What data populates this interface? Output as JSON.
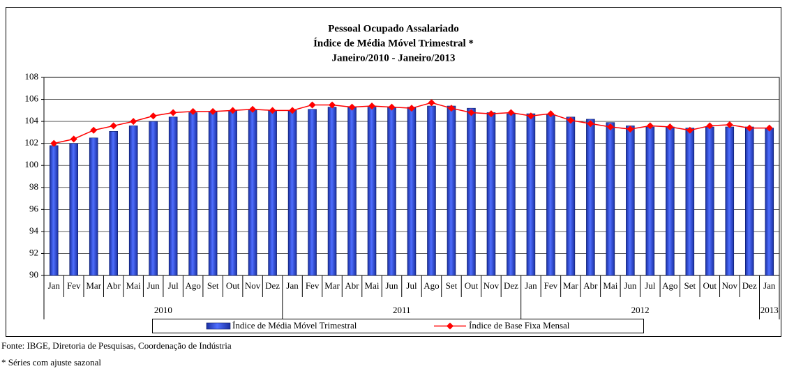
{
  "chart_data": {
    "type": "bar_line",
    "title": [
      "Pessoal Ocupado Assalariado",
      "Índice de Média Móvel Trimestral *",
      "Janeiro/2010 - Janeiro/2013"
    ],
    "categories": [
      "Jan",
      "Fev",
      "Mar",
      "Abr",
      "Mai",
      "Jun",
      "Jul",
      "Ago",
      "Set",
      "Out",
      "Nov",
      "Dez",
      "Jan",
      "Fev",
      "Mar",
      "Abr",
      "Mai",
      "Jun",
      "Jul",
      "Ago",
      "Set",
      "Out",
      "Nov",
      "Dez",
      "Jan",
      "Fev",
      "Mar",
      "Abr",
      "Mai",
      "Jun",
      "Jul",
      "Ago",
      "Set",
      "Out",
      "Nov",
      "Dez",
      "Jan"
    ],
    "year_labels": [
      "2010",
      "2011",
      "2012",
      "2013"
    ],
    "series": [
      {
        "name": "Índice de Média Móvel Trimestral",
        "color": "#3355dd",
        "kind": "bar",
        "values": [
          101.8,
          102.0,
          102.5,
          103.1,
          103.6,
          104.0,
          104.4,
          104.8,
          104.9,
          105.0,
          105.1,
          105.0,
          105.0,
          105.1,
          105.3,
          105.3,
          105.3,
          105.3,
          105.3,
          105.4,
          105.4,
          105.2,
          104.8,
          104.7,
          104.7,
          104.6,
          104.4,
          104.2,
          103.9,
          103.6,
          103.5,
          103.5,
          103.4,
          103.5,
          103.5,
          103.5,
          103.4
        ]
      },
      {
        "name": "Índice de Base Fixa Mensal",
        "color": "#ff0000",
        "kind": "line",
        "values": [
          102.0,
          102.4,
          103.2,
          103.6,
          104.0,
          104.5,
          104.8,
          104.9,
          104.9,
          105.0,
          105.1,
          105.0,
          105.0,
          105.5,
          105.5,
          105.3,
          105.4,
          105.3,
          105.2,
          105.7,
          105.2,
          104.8,
          104.7,
          104.8,
          104.5,
          104.7,
          104.1,
          103.8,
          103.5,
          103.3,
          103.6,
          103.5,
          103.2,
          103.6,
          103.7,
          103.4,
          103.4
        ]
      }
    ],
    "ylim": [
      90,
      108
    ],
    "yticks": [
      90,
      92,
      94,
      96,
      98,
      100,
      102,
      104,
      106,
      108
    ],
    "grid": true,
    "source": "Fonte: IBGE, Diretoria de Pesquisas, Coordenação de Indústria",
    "note": "* Séries com ajuste sazonal"
  }
}
